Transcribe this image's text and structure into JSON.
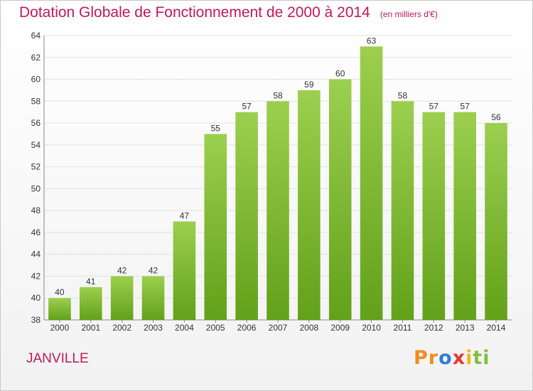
{
  "header": {
    "title": "Dotation Globale de Fonctionnement de 2000 à 2014",
    "unit": "(en milliers d'€)"
  },
  "footer": {
    "city": "JANVILLE",
    "logo_letters": [
      "P",
      "r",
      "o",
      "x",
      "i",
      "t",
      "i"
    ],
    "logo_colors": [
      "#f28c1e",
      "#f28c1e",
      "#2f7fd1",
      "#e23b2e",
      "#f2b61e",
      "#7fbf3f",
      "#7fbf3f"
    ]
  },
  "chart_data": {
    "type": "bar",
    "title": "Dotation Globale de Fonctionnement de 2000 à 2014",
    "categories": [
      "2000",
      "2001",
      "2002",
      "2003",
      "2004",
      "2005",
      "2006",
      "2007",
      "2008",
      "2009",
      "2010",
      "2011",
      "2012",
      "2013",
      "2014"
    ],
    "values": [
      40,
      41,
      42,
      42,
      47,
      55,
      57,
      58,
      59,
      60,
      63,
      58,
      57,
      57,
      56
    ],
    "ylim": [
      38,
      64
    ],
    "yticks": [
      38,
      40,
      42,
      44,
      46,
      48,
      50,
      52,
      54,
      56,
      58,
      60,
      62,
      64
    ],
    "grid": true,
    "bar_color_top": "#9ccf4f",
    "bar_color_bottom": "#62a11a",
    "xlabel": "",
    "ylabel": ""
  }
}
